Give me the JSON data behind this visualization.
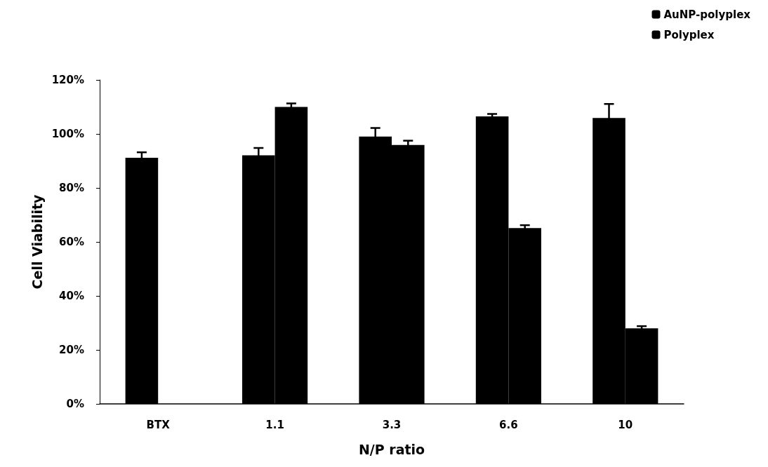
{
  "chart_data": {
    "type": "bar",
    "xlabel": "N/P ratio",
    "ylabel": "Cell Viability",
    "categories": [
      "BTX",
      "1.1",
      "3.3",
      "6.6",
      "10"
    ],
    "series": [
      {
        "name": "AuNP-polyplex",
        "color": "#000000",
        "values": [
          91.2,
          92.1,
          99.0,
          106.5,
          105.9
        ],
        "errors": [
          2.0,
          2.7,
          3.2,
          0.9,
          5.2
        ]
      },
      {
        "name": "Polyplex",
        "color": "#000000",
        "values": [
          null,
          110.0,
          95.9,
          65.1,
          28.0
        ],
        "errors": [
          null,
          1.3,
          1.6,
          1.1,
          0.8
        ]
      }
    ],
    "ylim": [
      0,
      120
    ],
    "yticks": [
      {
        "value": 0,
        "label": "0%"
      },
      {
        "value": 20,
        "label": "20%"
      },
      {
        "value": 40,
        "label": "40%"
      },
      {
        "value": 60,
        "label": "60%"
      },
      {
        "value": 80,
        "label": "80%"
      },
      {
        "value": 100,
        "label": "100%"
      },
      {
        "value": 120,
        "label": "120%"
      }
    ],
    "grid": false,
    "legend": "top right"
  }
}
